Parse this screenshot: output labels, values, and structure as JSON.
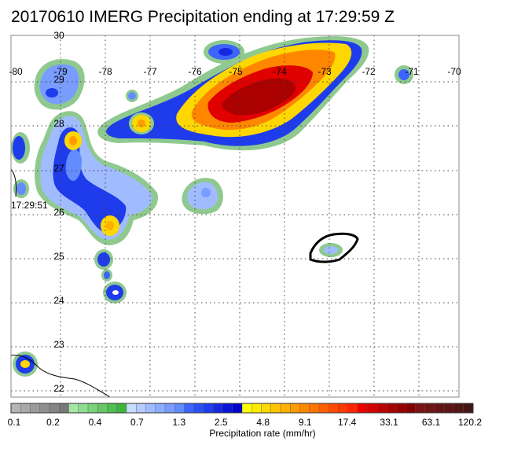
{
  "title": "20170610 IMERG Precipitation ending at 17:29:59 Z",
  "map": {
    "lon_labels": [
      "-80",
      "-79",
      "-78",
      "-77",
      "-76",
      "-75",
      "-74",
      "-73",
      "-72",
      "-71",
      "-70"
    ],
    "lat_labels": [
      "30",
      "29",
      "28",
      "27",
      "26",
      "25",
      "24",
      "23",
      "22"
    ],
    "time_annotation": "17:29:51"
  },
  "colorbar": {
    "title": "Precipitation rate (mm/hr)",
    "tick_labels": [
      "0.1",
      "0.2",
      "0.4",
      "0.7",
      "1.3",
      "2.5",
      "4.8",
      "9.1",
      "17.4",
      "33.1",
      "63.1",
      "120.2"
    ],
    "colors": [
      "#b4b4b4",
      "#a8a8a8",
      "#9c9c9c",
      "#909090",
      "#848484",
      "#787878",
      "#a6e6a6",
      "#90dc90",
      "#7ad27a",
      "#64c864",
      "#50be50",
      "#3cb43c",
      "#c8dcff",
      "#b4ccff",
      "#a0bcff",
      "#8cacff",
      "#789cff",
      "#648cff",
      "#3c64ff",
      "#2850f5",
      "#1e3ceb",
      "#1428e1",
      "#0a14d7",
      "#0000cd",
      "#ffff00",
      "#ffeb00",
      "#ffd700",
      "#ffc300",
      "#ffaf00",
      "#ff9b00",
      "#ff8700",
      "#ff7300",
      "#ff5f00",
      "#ff4b00",
      "#ff3700",
      "#ff2300",
      "#eb0000",
      "#d20000",
      "#be0000",
      "#aa0000",
      "#960000",
      "#820000",
      "#781414",
      "#6e1414",
      "#641414",
      "#5a1414",
      "#501414",
      "#461414"
    ]
  }
}
